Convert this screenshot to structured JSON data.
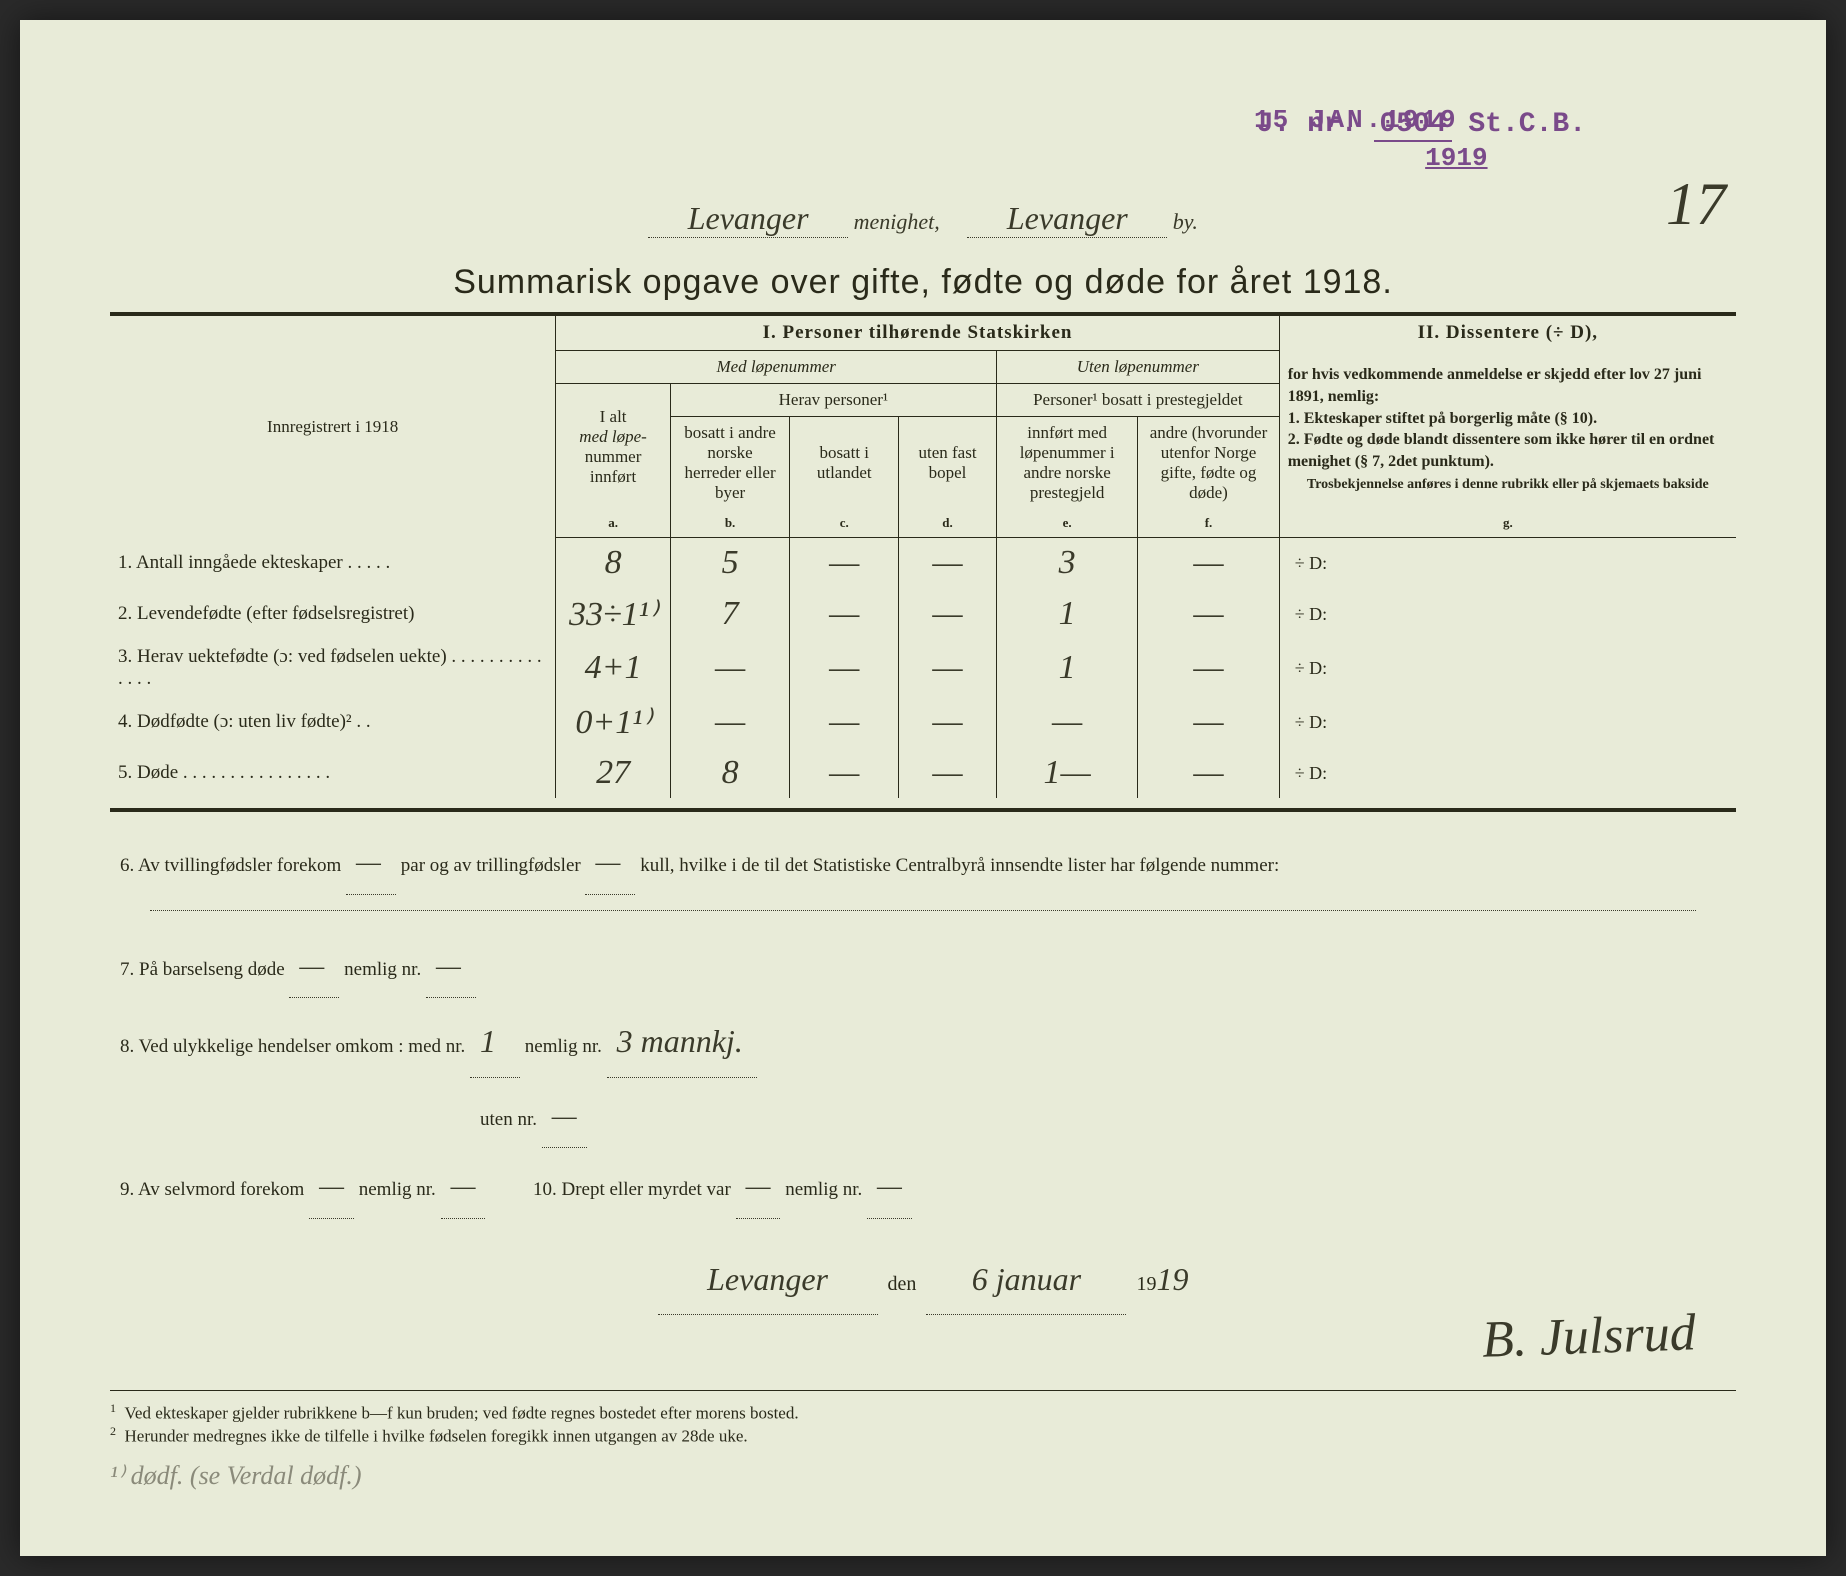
{
  "stamp": {
    "date": "15 JAN.1919",
    "jnr_prefix": "J. nr.",
    "jnr_num": "0504",
    "jnr_suffix": "St.C.B.",
    "year": "1919"
  },
  "page_number": "17",
  "header": {
    "parish_name": "Levanger",
    "label_menighet": "menighet,",
    "city_name": "Levanger",
    "label_by": "by."
  },
  "title": "Summarisk opgave over gifte, fødte og døde for året 1918.",
  "table": {
    "left_header": "Innregistrert i 1918",
    "section1": "I.  Personer tilhørende Statskirken",
    "section2_title": "II.  Dissentere (÷ D),",
    "med_lopenummer": "Med løpenummer",
    "uten_lopenummer": "Uten løpenummer",
    "herav_personer": "Herav personer¹",
    "personer_bosatt": "Personer¹ bosatt i prestegjeldet",
    "col_a_line1": "I alt",
    "col_a_line2": "med løpe-",
    "col_a_line3": "nummer innført",
    "col_b": "bosatt i andre norske herreder eller byer",
    "col_c": "bosatt i utlandet",
    "col_d": "uten fast bopel",
    "col_e": "innført med løpenummer i andre norske prestegjeld",
    "col_f": "andre (hvorunder utenfor Norge gifte, fødte og døde)",
    "dissenter_text": "for hvis vedkommende anmeldelse er skjedd efter lov 27 juni 1891, nemlig:",
    "dissenter_1": "1. Ekteskaper stiftet ",
    "dissenter_1b": "på borgerlig måte",
    "dissenter_1c": " (§ 10).",
    "dissenter_2": "2. Fødte og døde blandt dissentere ",
    "dissenter_2b": "som ikke hører til en ordnet menighet",
    "dissenter_2c": " (§ 7, 2det punktum).",
    "dissenter_note": "Trosbekjennelse anføres i denne rubrikk eller på skjemaets bakside",
    "letters": {
      "a": "a.",
      "b": "b.",
      "c": "c.",
      "d": "d.",
      "e": "e.",
      "f": "f.",
      "g": "g."
    },
    "rows": [
      {
        "label": "1. Antall inngåede ekteskaper . . . . .",
        "a": "8",
        "b": "5",
        "c": "—",
        "d": "—",
        "e": "3",
        "f": "—",
        "g": "÷ D:"
      },
      {
        "label": "2. Levendefødte (efter fødselsregistret)",
        "a": "33÷1¹⁾",
        "b": "7",
        "c": "—",
        "d": "—",
        "e": "1",
        "f": "—",
        "g": "÷ D:"
      },
      {
        "label": "3. Herav uektefødte (ɔ: ved fødselen uekte) . . . . . . . . . . . . . .",
        "a": "4+1",
        "b": "—",
        "c": "—",
        "d": "—",
        "e": "1",
        "f": "—",
        "g": "÷ D:"
      },
      {
        "label": "4. Dødfødte (ɔ: uten liv fødte)² . .",
        "a": "0+1¹⁾",
        "b": "—",
        "c": "—",
        "d": "—",
        "e": "—",
        "f": "—",
        "g": "÷ D:"
      },
      {
        "label": "5. Døde . . . . . . . . . . . . . . . .",
        "a": "27",
        "b": "8",
        "c": "—",
        "d": "—",
        "e": "1—",
        "f": "—",
        "g": "÷ D:"
      }
    ]
  },
  "notes": {
    "n6a": "6. Av tvillingfødsler forekom",
    "n6_val1": "—",
    "n6b": "par og av trillingfødsler",
    "n6_val2": "—",
    "n6c": "kull, hvilke i de til det Statistiske Centralbyrå innsendte lister har følgende nummer:",
    "n7": "7. På barselseng døde",
    "n7_val1": "—",
    "n7b": "nemlig nr.",
    "n7_val2": "—",
    "n8": "8. Ved ulykkelige hendelser omkom : med nr.",
    "n8_val1": "1",
    "n8b": "nemlig nr.",
    "n8_val2": "3 mannkj.",
    "n8c": "uten nr.",
    "n8_val3": "—",
    "n9": "9. Av selvmord forekom",
    "n9_val1": "—",
    "n9b": "nemlig nr.",
    "n9_val2": "—",
    "n10": "10.  Drept eller myrdet var",
    "n10_val1": "—",
    "n10b": "nemlig nr.",
    "n10_val2": "—"
  },
  "signature": {
    "place": "Levanger",
    "den": "den",
    "date": "6 januar",
    "year_prefix": "19",
    "year_suffix": "19",
    "sig": "B. Julsrud"
  },
  "footnotes": {
    "f1": "Ved ekteskaper gjelder rubrikkene b—f kun bruden; ved fødte regnes bostedet efter morens bosted.",
    "f2": "Herunder medregnes ikke de tilfelle i hvilke fødselen foregikk innen utgangen av 28de uke."
  },
  "pencil_note": "¹⁾ dødf. (se Verdal dødf.)"
}
